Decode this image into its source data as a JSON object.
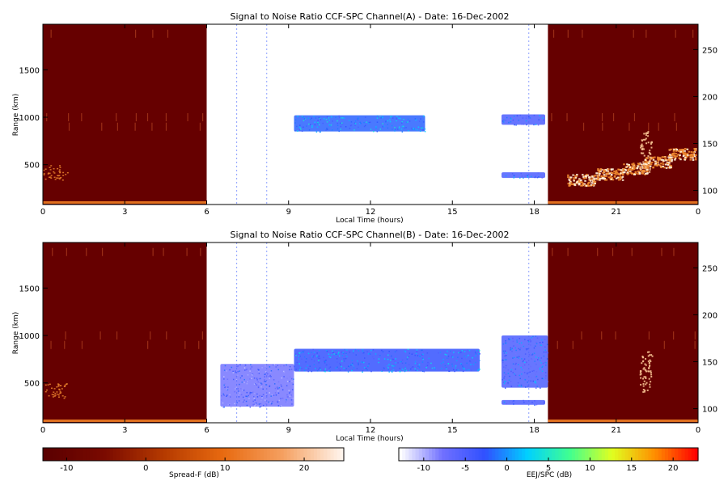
{
  "chart_data": [
    {
      "type": "heatmap",
      "title": "Signal to Noise Ratio CCF-SPC Channel(A) - Date: 16-Dec-2002",
      "xlabel": "Local Time (hours)",
      "ylabel": "Range (km)",
      "xlim": [
        0,
        24
      ],
      "x_tick_labels": [
        "0",
        "3",
        "6",
        "9",
        "12",
        "15",
        "18",
        "21",
        "0"
      ],
      "ylim": [
        80,
        1980
      ],
      "y_ticks": [
        500,
        1000,
        1500
      ],
      "right_ylim": [
        85,
        277
      ],
      "right_y_ticks": [
        100,
        150,
        200,
        250
      ],
      "spread_f_intervals": [
        [
          0,
          6
        ],
        [
          18.5,
          24
        ]
      ],
      "eej_echoes": [
        {
          "x0": 9.2,
          "x1": 14.0,
          "y0": 850,
          "y1": 1020,
          "db": -2
        },
        {
          "x0": 16.8,
          "x1": 18.4,
          "y0": 920,
          "y1": 1030,
          "db": -5
        },
        {
          "x0": 16.8,
          "x1": 18.4,
          "y0": 360,
          "y1": 420,
          "db": -5
        }
      ]
    },
    {
      "type": "heatmap",
      "title": "Signal to Noise Ratio CCF-SPC Channel(B) - Date: 16-Dec-2002",
      "xlabel": "Local Time (hours)",
      "ylabel": "Range (km)",
      "xlim": [
        0,
        24
      ],
      "x_tick_labels": [
        "0",
        "3",
        "6",
        "9",
        "12",
        "15",
        "18",
        "21",
        "0"
      ],
      "ylim": [
        80,
        1980
      ],
      "y_ticks": [
        500,
        1000,
        1500
      ],
      "right_ylim": [
        85,
        277
      ],
      "right_y_ticks": [
        100,
        150,
        200,
        250
      ],
      "spread_f_intervals": [
        [
          0,
          6
        ],
        [
          18.5,
          24
        ]
      ],
      "eej_echoes": [
        {
          "x0": 9.2,
          "x1": 16.0,
          "y0": 620,
          "y1": 860,
          "db": -3
        },
        {
          "x0": 16.8,
          "x1": 18.5,
          "y0": 450,
          "y1": 1000,
          "db": -5
        },
        {
          "x0": 6.5,
          "x1": 9.2,
          "y0": 250,
          "y1": 700,
          "db": -8
        },
        {
          "x0": 16.8,
          "x1": 18.4,
          "y0": 270,
          "y1": 320,
          "db": -5
        }
      ]
    }
  ],
  "colorbars": [
    {
      "label": "Spread-F (dB)",
      "range": [
        -13,
        25
      ],
      "ticks": [
        "-10",
        "0",
        "10",
        "20"
      ],
      "colors": [
        "#5a0000",
        "#7a0a00",
        "#b53a00",
        "#e86a10",
        "#f5a060",
        "#fff4ec"
      ]
    },
    {
      "label": "EEJ/SPC (dB)",
      "range": [
        -13,
        23
      ],
      "ticks": [
        "-10",
        "-5",
        "0",
        "5",
        "10",
        "15",
        "20"
      ],
      "colors": [
        "#ffffff",
        "#7070ff",
        "#3050ff",
        "#00d0ff",
        "#40ff90",
        "#e0ff20",
        "#ff9000",
        "#ff0000"
      ]
    }
  ]
}
